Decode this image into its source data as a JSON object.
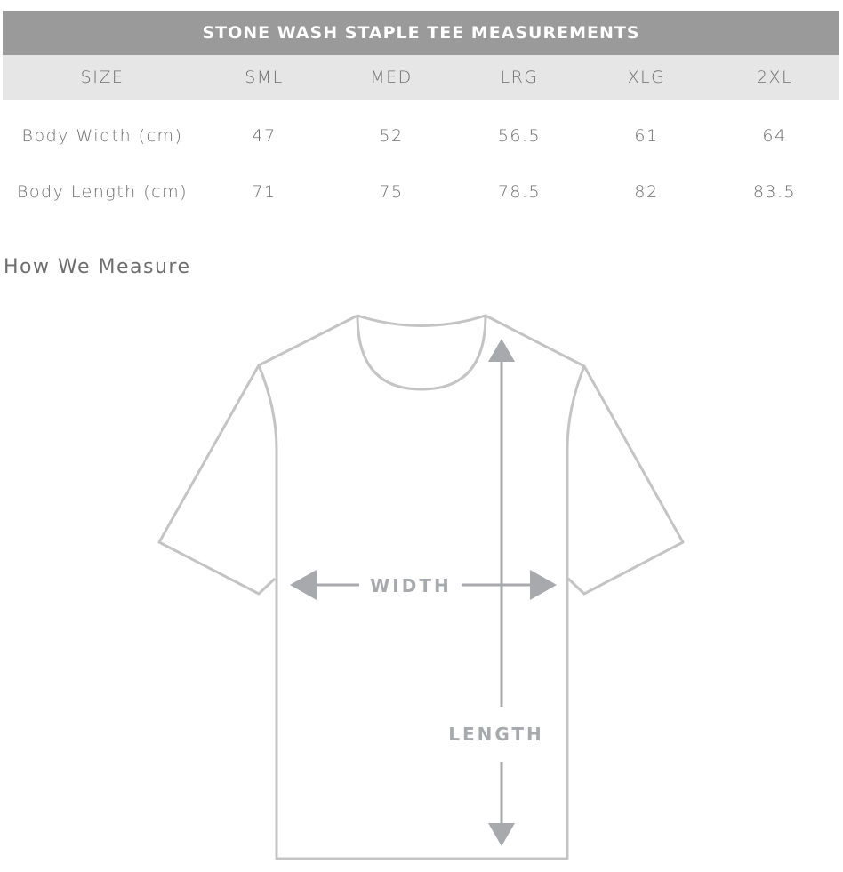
{
  "table": {
    "title": "STONE WASH STAPLE TEE MEASUREMENTS",
    "header": {
      "label": "SIZE",
      "sizes": [
        "SML",
        "MED",
        "LRG",
        "XLG",
        "2XL"
      ]
    },
    "rows": [
      {
        "label": "Body Width (cm)",
        "values": [
          "47",
          "52",
          "56.5",
          "61",
          "64"
        ]
      },
      {
        "label": "Body Length (cm)",
        "values": [
          "71",
          "75",
          "78.5",
          "82",
          "83.5"
        ]
      }
    ]
  },
  "diagram": {
    "heading": "How We Measure",
    "width_label": "WIDTH",
    "length_label": "LENGTH",
    "colors": {
      "header_bg": "#9a9a9a",
      "size_row_bg": "#e6e6e6",
      "outline": "#c4c4c4",
      "arrow": "#a8a9ad"
    }
  }
}
